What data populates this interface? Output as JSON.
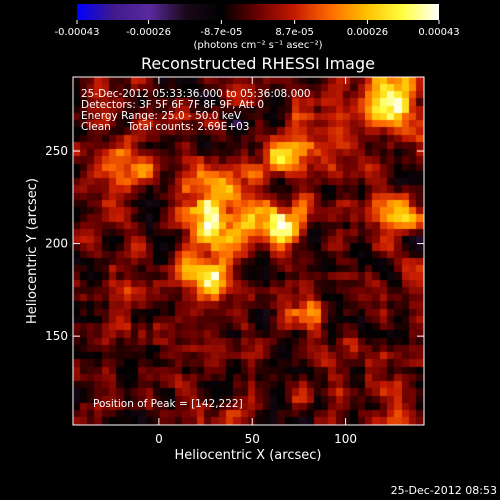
{
  "chart_data": {
    "type": "heatmap",
    "title": "Reconstructed RHESSI Image",
    "xlabel": "Heliocentric X (arcsec)",
    "ylabel": "Heliocentric Y (arcsec)",
    "xlim": [
      -46,
      142
    ],
    "ylim": [
      102,
      290
    ],
    "x_ticks": [
      0,
      50,
      100
    ],
    "y_ticks": [
      150,
      200,
      250
    ],
    "x_tick_labels": [
      "0",
      "50",
      "100"
    ],
    "y_tick_labels": [
      "150",
      "200",
      "250"
    ],
    "colorbar": {
      "range": [
        -0.00043,
        0.00043
      ],
      "ticks": [
        -0.00043,
        -0.00026,
        -8.7e-05,
        8.7e-05,
        0.00026,
        0.00043
      ],
      "tick_labels": [
        "-0.00043",
        "-0.00026",
        "-8.7e-05",
        "8.7e-05",
        "0.00026",
        "0.00043"
      ],
      "unit_label": "(photons cm⁻² s⁻¹ asec⁻²)",
      "colormap": [
        "#0000ff",
        "#3f1a8c",
        "#5a2aa0",
        "#1a0818",
        "#000000",
        "#6a0000",
        "#c41a00",
        "#ff6a00",
        "#ffc000",
        "#ffff40",
        "#ffffff"
      ]
    },
    "annotations": {
      "time_range": "25-Dec-2012 05:33:36.000 to 05:36:08.000",
      "detectors": "Detectors: 3F 5F 6F 7F 8F 9F, Att 0",
      "energy_range": "Energy Range: 25.0 - 50.0 keV",
      "method_counts": "Clean     Total counts: 2.69E+03",
      "peak": "Position of Peak = [142,222]"
    },
    "image_grid": {
      "nx": 48,
      "ny": 48,
      "value_range": [
        -0.00043,
        0.00043
      ],
      "bright_sources": [
        {
          "x": 30,
          "y": 218,
          "value": 0.00041,
          "sigma_arcsec": 12
        },
        {
          "x": 27,
          "y": 183,
          "value": 0.00038,
          "sigma_arcsec": 8
        },
        {
          "x": 65,
          "y": 210,
          "value": 0.00036,
          "sigma_arcsec": 9
        },
        {
          "x": 125,
          "y": 275,
          "value": 0.00038,
          "sigma_arcsec": 11
        },
        {
          "x": 72,
          "y": 250,
          "value": 0.0003,
          "sigma_arcsec": 10
        },
        {
          "x": 130,
          "y": 215,
          "value": 0.00032,
          "sigma_arcsec": 8
        },
        {
          "x": 80,
          "y": 165,
          "value": 0.00025,
          "sigma_arcsec": 7
        },
        {
          "x": -15,
          "y": 240,
          "value": 0.00022,
          "sigma_arcsec": 9
        }
      ]
    },
    "grid": false
  },
  "footer": {
    "timestamp": "25-Dec-2012 08:53"
  }
}
